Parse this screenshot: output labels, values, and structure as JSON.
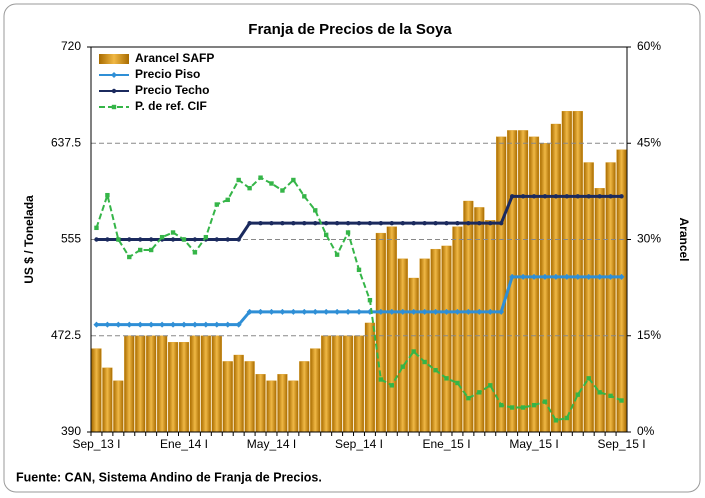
{
  "chart_data": {
    "type": "bar",
    "title": "Franja de Precios de la Soya",
    "y_label": "US $ / Tonelada",
    "y2_label": "Arancel",
    "source": "Fuente: CAN, Sistema Andino de Franja de Precios.",
    "categories": [
      "Sep_13 I",
      null,
      null,
      null,
      null,
      null,
      null,
      null,
      "Ene_14 I",
      null,
      null,
      null,
      null,
      null,
      null,
      null,
      "May_14 I",
      null,
      null,
      null,
      null,
      null,
      null,
      null,
      "Sep_14 I",
      null,
      null,
      null,
      null,
      null,
      null,
      null,
      "Ene_15 I",
      null,
      null,
      null,
      null,
      null,
      null,
      null,
      "May_15 I",
      null,
      null,
      null,
      null,
      null,
      null,
      null,
      "Sep_15 I"
    ],
    "ylim": [
      390,
      720
    ],
    "yticks": [
      390,
      472.5,
      555,
      637.5,
      720
    ],
    "y2lim": [
      0,
      60
    ],
    "y2ticks": [
      {
        "value": 0,
        "label": "0%"
      },
      {
        "value": 15,
        "label": "15%"
      },
      {
        "value": 30,
        "label": "30%"
      },
      {
        "value": 45,
        "label": "45%"
      },
      {
        "value": 60,
        "label": "60%"
      }
    ],
    "grid": true,
    "legend": "upper left",
    "series": [
      {
        "name": "Arancel SAFP",
        "type": "bar",
        "axis": "y2",
        "color": "#d4920f",
        "values": [
          13,
          10,
          8,
          15,
          15,
          15,
          15,
          14,
          14,
          15,
          15,
          15,
          11,
          12,
          11,
          9,
          8,
          9,
          8,
          11,
          13,
          15,
          15,
          15,
          15,
          17,
          31,
          32,
          27,
          24,
          27,
          28.5,
          29,
          32,
          36,
          35,
          33,
          46,
          47,
          47,
          46,
          45,
          48,
          50,
          50,
          42,
          38,
          42,
          44
        ]
      },
      {
        "name": "Precio Piso",
        "type": "line",
        "color": "#2f8fd6",
        "values": [
          482,
          482,
          482,
          482,
          482,
          482,
          482,
          482,
          482,
          482,
          482,
          482,
          482,
          482,
          493,
          493,
          493,
          493,
          493,
          493,
          493,
          493,
          493,
          493,
          493,
          493,
          493,
          493,
          493,
          493,
          493,
          493,
          493,
          493,
          493,
          493,
          493,
          493,
          523,
          523,
          523,
          523,
          523,
          523,
          523,
          523,
          523,
          523,
          523
        ]
      },
      {
        "name": "Precio Techo",
        "type": "line",
        "color": "#1b2a5e",
        "values": [
          555,
          555,
          555,
          555,
          555,
          555,
          555,
          555,
          555,
          555,
          555,
          555,
          555,
          555,
          569,
          569,
          569,
          569,
          569,
          569,
          569,
          569,
          569,
          569,
          569,
          569,
          569,
          569,
          569,
          569,
          569,
          569,
          569,
          569,
          569,
          569,
          569,
          569,
          592,
          592,
          592,
          592,
          592,
          592,
          592,
          592,
          592,
          592,
          592
        ]
      },
      {
        "name": "P. de ref. CIF",
        "type": "line",
        "dashed": true,
        "color": "#35b548",
        "values": [
          565,
          593,
          555,
          540,
          546,
          546,
          557,
          561,
          555,
          544,
          557,
          585,
          589,
          606,
          599,
          608,
          603,
          597,
          606,
          592,
          580,
          559,
          542,
          561,
          529,
          503,
          435,
          430,
          446,
          459,
          450,
          443,
          436,
          432,
          419,
          424,
          430,
          413,
          411,
          411,
          413,
          416,
          400,
          402,
          422,
          436,
          424,
          421,
          417
        ]
      }
    ]
  }
}
